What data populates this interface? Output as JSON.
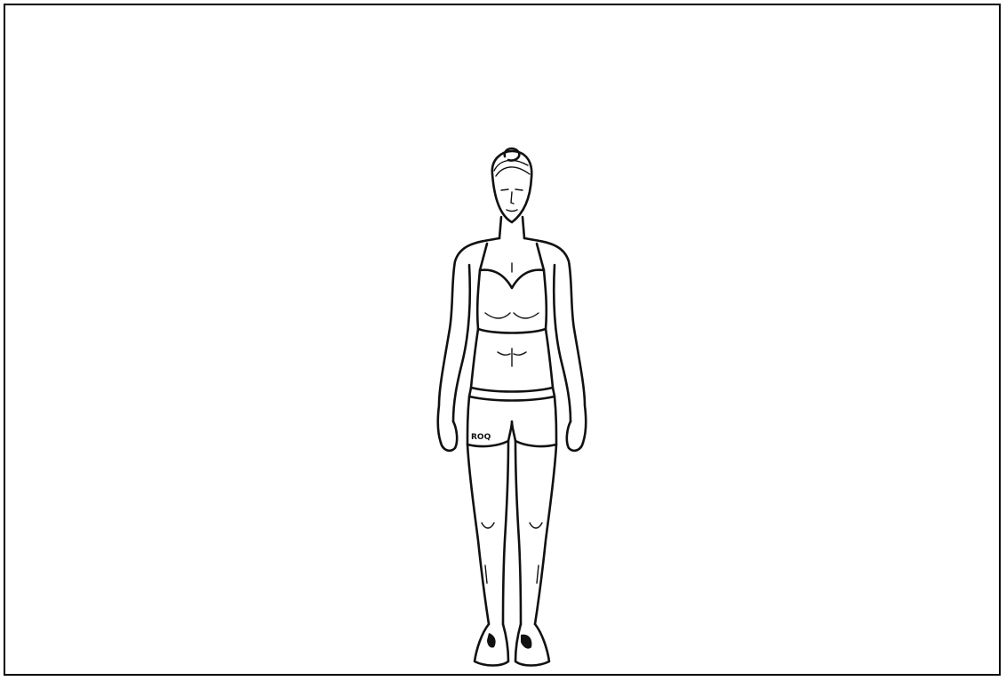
{
  "illustration": {
    "subject": "standing-woman-front-view",
    "shorts_logo_text": "ROQ",
    "colors": {
      "line": "#111111",
      "background": "#ffffff",
      "frame_border": "#000000"
    }
  }
}
